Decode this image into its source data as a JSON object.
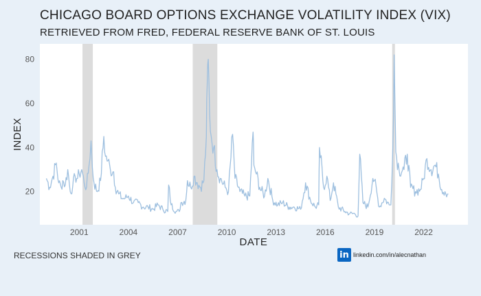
{
  "header": {
    "title": "CHICAGO BOARD OPTIONS EXCHANGE VOLATILITY INDEX (VIX)",
    "subtitle": "RETRIEVED FROM FRED, FEDERAL RESERVE BANK OF ST. LOUIS"
  },
  "footer": {
    "note": "RECESSIONS SHADED IN GREY",
    "credit_badge": "in",
    "credit": "linkedin.com/in/alecnathan"
  },
  "colors": {
    "background": "#e8f0f8",
    "plot_background": "#ffffff",
    "line": "#9dbfdf",
    "recession": "#dcdcdc"
  },
  "chart_data": {
    "type": "line",
    "title": "CHICAGO BOARD OPTIONS EXCHANGE VOLATILITY INDEX (VIX)",
    "subtitle": "RETRIEVED FROM FRED, FEDERAL RESERVE BANK OF ST. LOUIS",
    "xlabel": "DATE",
    "ylabel": "INDEX",
    "xlim": [
      1998.6,
      2024.7
    ],
    "ylim": [
      5,
      87
    ],
    "x_ticks": [
      2001,
      2004,
      2007,
      2010,
      2013,
      2016,
      2019,
      2022
    ],
    "y_ticks": [
      20,
      40,
      60,
      80
    ],
    "grid": false,
    "recessions": [
      [
        2001.2,
        2001.83
      ],
      [
        2007.92,
        2009.42
      ],
      [
        2020.08,
        2020.25
      ]
    ],
    "series": [
      {
        "name": "VIX",
        "x": [
          1999.0,
          1999.2,
          1999.4,
          1999.6,
          1999.75,
          1999.9,
          2000.0,
          2000.15,
          2000.3,
          2000.45,
          2000.6,
          2000.75,
          2000.9,
          2001.0,
          2001.15,
          2001.3,
          2001.45,
          2001.6,
          2001.72,
          2001.8,
          2001.9,
          2002.1,
          2002.3,
          2002.5,
          2002.6,
          2002.75,
          2002.9,
          2003.1,
          2003.2,
          2003.4,
          2003.6,
          2003.8,
          2004.0,
          2004.3,
          2004.6,
          2004.9,
          2005.2,
          2005.5,
          2005.8,
          2006.1,
          2006.4,
          2006.45,
          2006.6,
          2006.9,
          2007.1,
          2007.2,
          2007.5,
          2007.6,
          2007.8,
          2008.0,
          2008.2,
          2008.4,
          2008.6,
          2008.75,
          2008.8,
          2008.87,
          2008.95,
          2009.05,
          2009.2,
          2009.4,
          2009.6,
          2009.9,
          2010.1,
          2010.35,
          2010.5,
          2010.8,
          2011.1,
          2011.4,
          2011.6,
          2011.65,
          2011.8,
          2012.0,
          2012.3,
          2012.5,
          2012.8,
          2013.1,
          2013.4,
          2013.8,
          2014.1,
          2014.5,
          2014.8,
          2015.1,
          2015.4,
          2015.6,
          2015.65,
          2015.9,
          2016.1,
          2016.3,
          2016.5,
          2016.8,
          2017.2,
          2017.5,
          2017.8,
          2018.0,
          2018.1,
          2018.3,
          2018.6,
          2018.9,
          2019.0,
          2019.3,
          2019.6,
          2019.9,
          2020.0,
          2020.12,
          2020.2,
          2020.3,
          2020.5,
          2020.8,
          2021.0,
          2021.2,
          2021.5,
          2021.8,
          2022.0,
          2022.2,
          2022.45,
          2022.7,
          2022.9,
          2023.1,
          2023.3,
          2023.5
        ],
        "values": [
          26,
          22,
          27,
          33,
          24,
          22,
          25,
          23,
          30,
          20,
          22,
          27,
          26,
          28,
          30,
          24,
          22,
          32,
          43,
          31,
          24,
          20,
          25,
          45,
          36,
          34,
          30,
          29,
          22,
          19,
          17,
          17,
          18,
          15,
          15,
          13,
          13,
          12,
          14,
          12,
          11,
          23,
          14,
          11,
          11,
          15,
          16,
          25,
          22,
          27,
          24,
          22,
          25,
          45,
          68,
          80,
          55,
          45,
          40,
          30,
          26,
          22,
          20,
          46,
          26,
          20,
          18,
          18,
          47,
          32,
          28,
          22,
          18,
          26,
          16,
          14,
          15,
          13,
          13,
          12,
          24,
          16,
          13,
          14,
          40,
          22,
          27,
          16,
          24,
          13,
          11,
          10,
          10,
          9,
          37,
          15,
          13,
          26,
          25,
          13,
          17,
          14,
          14,
          40,
          82,
          38,
          30,
          30,
          37,
          22,
          20,
          21,
          26,
          35,
          30,
          32,
          28,
          21,
          20,
          19
        ]
      }
    ]
  }
}
